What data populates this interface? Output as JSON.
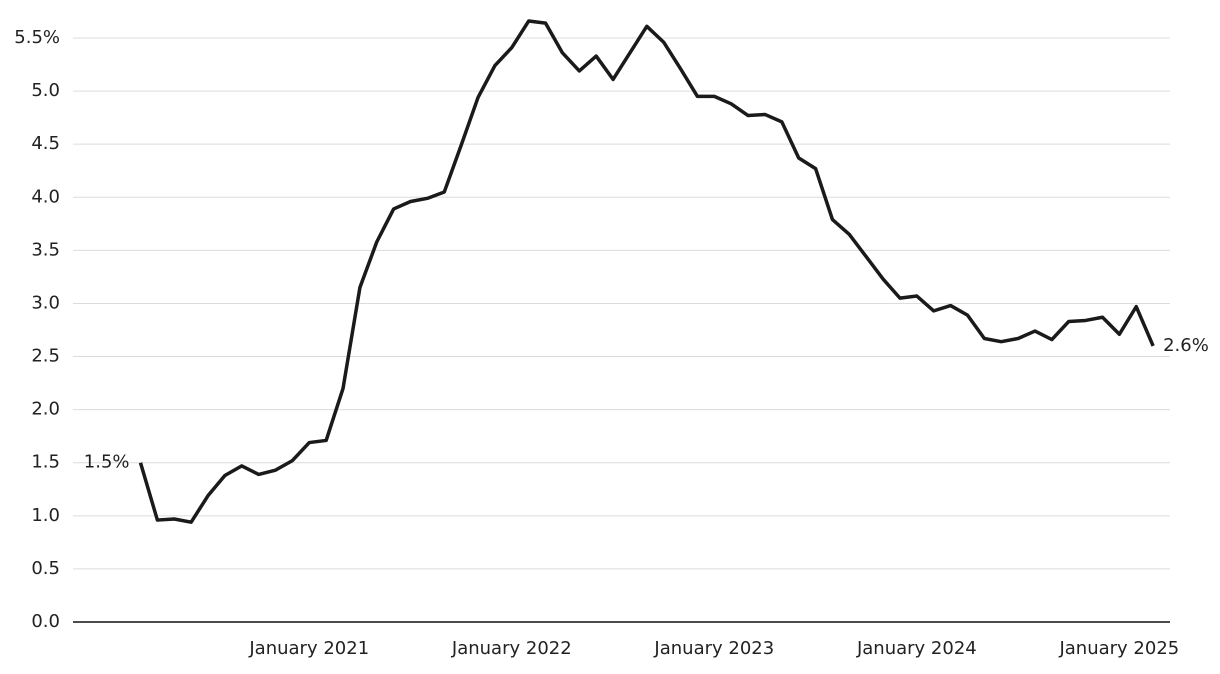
{
  "chart_data": {
    "type": "line",
    "x": [
      "2020-03",
      "2020-04",
      "2020-05",
      "2020-06",
      "2020-07",
      "2020-08",
      "2020-09",
      "2020-10",
      "2020-11",
      "2020-12",
      "2021-01",
      "2021-02",
      "2021-03",
      "2021-04",
      "2021-05",
      "2021-06",
      "2021-07",
      "2021-08",
      "2021-09",
      "2021-10",
      "2021-11",
      "2021-12",
      "2022-01",
      "2022-02",
      "2022-03",
      "2022-04",
      "2022-05",
      "2022-06",
      "2022-07",
      "2022-08",
      "2022-09",
      "2022-10",
      "2022-11",
      "2022-12",
      "2023-01",
      "2023-02",
      "2023-03",
      "2023-04",
      "2023-05",
      "2023-06",
      "2023-07",
      "2023-08",
      "2023-09",
      "2023-10",
      "2023-11",
      "2023-12",
      "2024-01",
      "2024-02",
      "2024-03",
      "2024-04",
      "2024-05",
      "2024-06",
      "2024-07",
      "2024-08",
      "2024-09",
      "2024-10",
      "2024-11",
      "2024-12",
      "2025-01",
      "2025-02",
      "2025-03"
    ],
    "series": [
      {
        "color": "#1a1a1a",
        "values": [
          1.5,
          0.96,
          0.97,
          0.94,
          1.19,
          1.38,
          1.47,
          1.39,
          1.43,
          1.52,
          1.69,
          1.71,
          2.2,
          3.15,
          3.58,
          3.89,
          3.96,
          3.99,
          4.05,
          4.49,
          4.94,
          5.24,
          5.41,
          5.66,
          5.64,
          5.36,
          5.19,
          5.33,
          5.11,
          5.36,
          5.61,
          5.46,
          5.21,
          4.95,
          4.95,
          4.88,
          4.77,
          4.78,
          4.71,
          4.37,
          4.27,
          3.79,
          3.65,
          3.44,
          3.23,
          3.05,
          3.07,
          2.93,
          2.98,
          2.89,
          2.67,
          2.64,
          2.67,
          2.74,
          2.66,
          2.83,
          2.84,
          2.87,
          2.71,
          2.97,
          2.6
        ],
        "value_labels": [
          "1.5%",
          null,
          null,
          null,
          null,
          null,
          null,
          null,
          null,
          null,
          null,
          null,
          null,
          null,
          null,
          null,
          null,
          null,
          null,
          null,
          null,
          null,
          null,
          null,
          null,
          null,
          null,
          null,
          null,
          null,
          null,
          null,
          null,
          null,
          null,
          null,
          null,
          null,
          null,
          null,
          null,
          null,
          null,
          null,
          null,
          null,
          null,
          null,
          null,
          null,
          null,
          null,
          null,
          null,
          null,
          null,
          null,
          null,
          null,
          null,
          "2.6%"
        ]
      }
    ],
    "xlim": [
      "2019-11",
      "2025-04"
    ],
    "xticks": [
      {
        "value": "2021-01",
        "label": "January 2021"
      },
      {
        "value": "2022-01",
        "label": "January 2022"
      },
      {
        "value": "2023-01",
        "label": "January 2023"
      },
      {
        "value": "2024-01",
        "label": "January 2024"
      },
      {
        "value": "2025-01",
        "label": "January 2025"
      }
    ],
    "ylim": [
      0,
      5.5
    ],
    "yticks": [
      {
        "value": 0,
        "label": "0.0"
      },
      0.5,
      {
        "value": 1,
        "label": "1.0"
      },
      1.5,
      {
        "value": 2,
        "label": "2.0"
      },
      2.5,
      {
        "value": 3,
        "label": "3.0"
      },
      3.5,
      {
        "value": 4,
        "label": "4.0"
      },
      4.5,
      {
        "value": 5,
        "label": "5.0"
      },
      {
        "value": 5.5,
        "label": "5.5%"
      }
    ],
    "grid": true
  }
}
